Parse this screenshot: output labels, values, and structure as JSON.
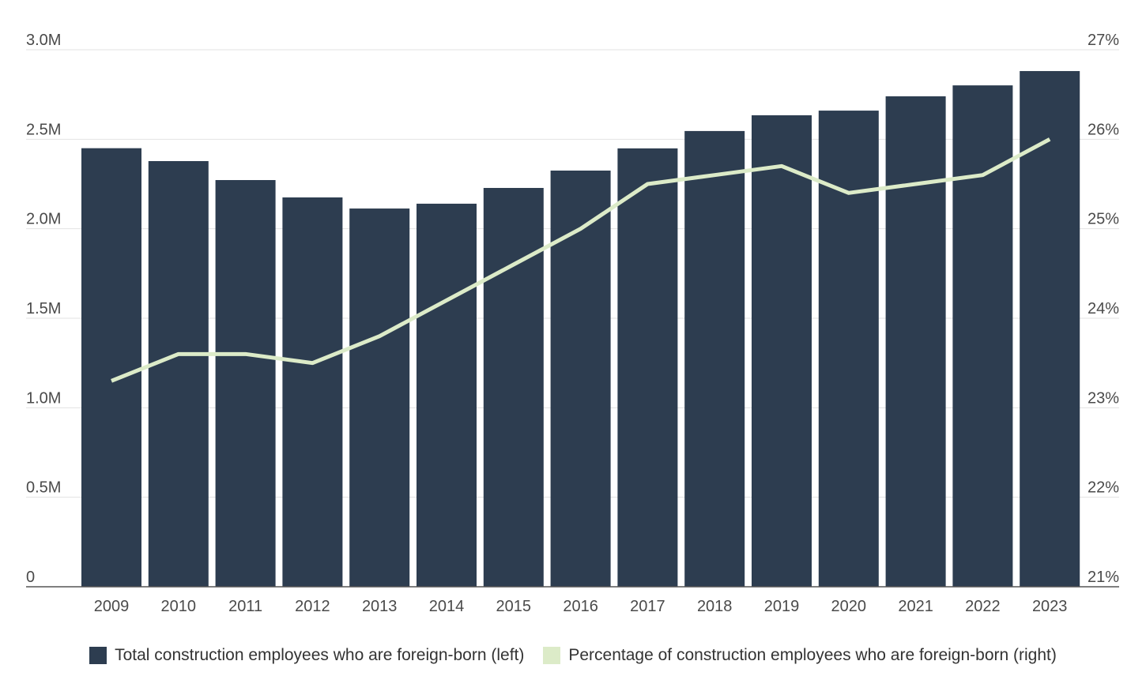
{
  "chart_data": {
    "type": "bar",
    "categories": [
      "2009",
      "2010",
      "2011",
      "2012",
      "2013",
      "2014",
      "2015",
      "2016",
      "2017",
      "2018",
      "2019",
      "2020",
      "2021",
      "2022",
      "2023"
    ],
    "series": [
      {
        "name": "Total construction employees who are foreign-born (left)",
        "type": "bar",
        "axis": "left",
        "color": "#2d3d50",
        "values": [
          2450000,
          2378000,
          2272000,
          2175000,
          2113000,
          2140000,
          2228000,
          2325000,
          2449000,
          2546000,
          2634000,
          2660000,
          2740000,
          2801000,
          2881000
        ]
      },
      {
        "name": "Percentage of construction employees who are foreign-born (right)",
        "type": "line",
        "axis": "right",
        "color": "#dcebc8",
        "values": [
          23.3,
          23.6,
          23.6,
          23.5,
          23.8,
          24.2,
          24.6,
          25.0,
          25.5,
          25.6,
          25.7,
          25.4,
          25.5,
          25.6,
          26.0
        ]
      }
    ],
    "left_axis": {
      "range": [
        0,
        3000000
      ],
      "ticks": [
        0,
        500000,
        1000000,
        1500000,
        2000000,
        2500000,
        3000000
      ],
      "tick_labels": [
        "0",
        "0.5M",
        "1.0M",
        "1.5M",
        "2.0M",
        "2.5M",
        "3.0M"
      ]
    },
    "right_axis": {
      "range": [
        21,
        27
      ],
      "ticks": [
        21,
        22,
        23,
        24,
        25,
        26,
        27
      ],
      "tick_labels": [
        "21%",
        "22%",
        "23%",
        "24%",
        "25%",
        "26%",
        "27%"
      ]
    },
    "grid": true,
    "legend_placement": "bottom",
    "title": "",
    "xlabel": "",
    "ylabel": ""
  }
}
